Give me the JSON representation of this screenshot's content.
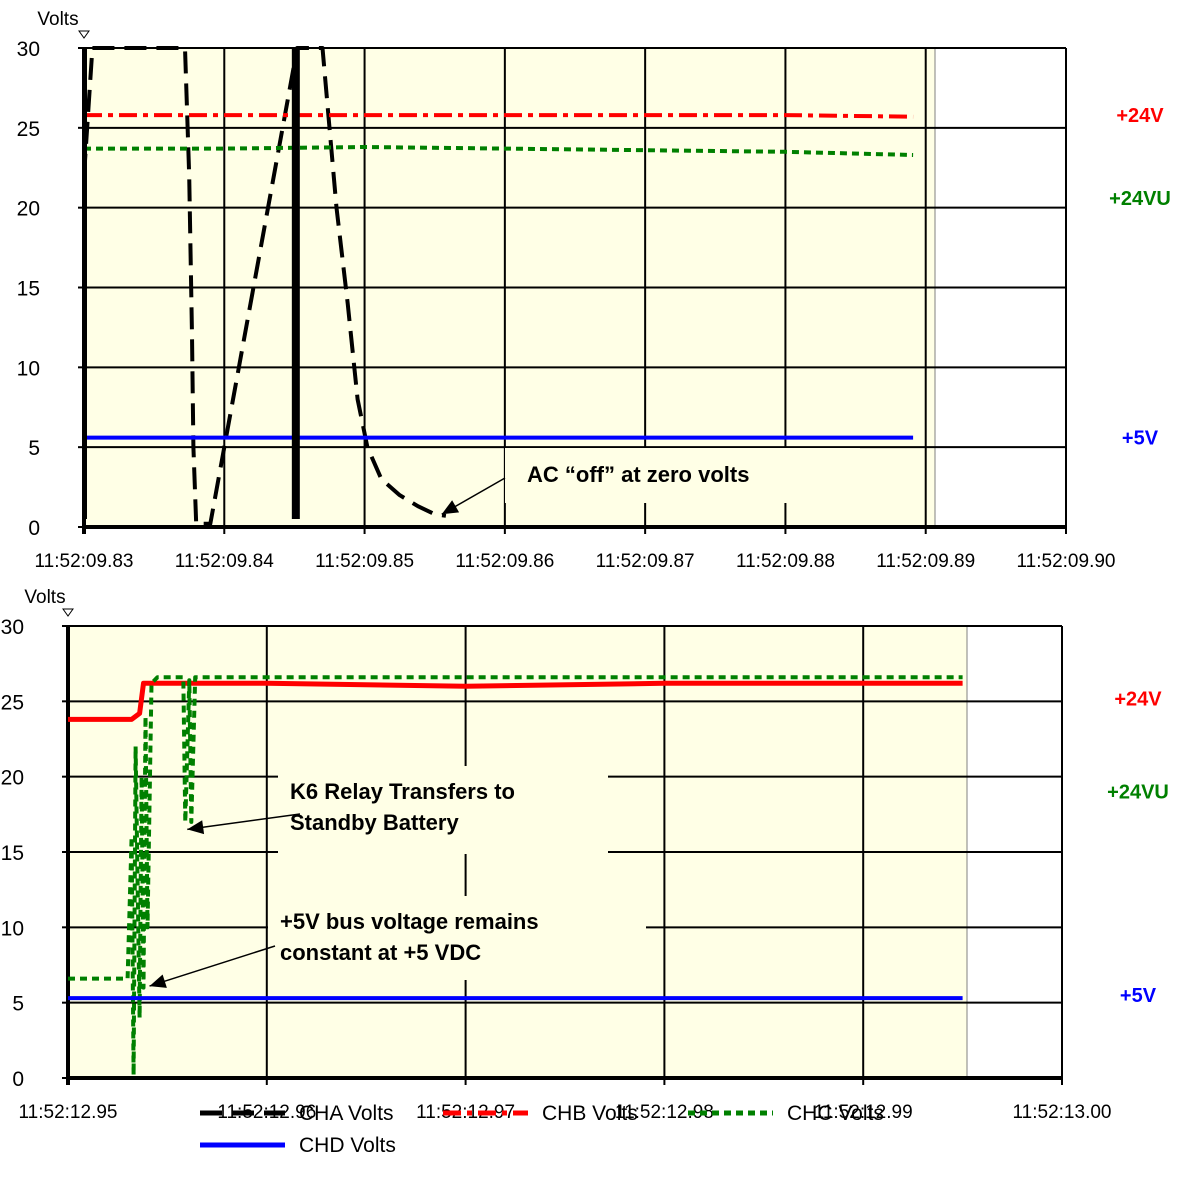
{
  "chart_data": [
    {
      "type": "line",
      "ylabel": "Volts",
      "ylim": [
        0,
        30
      ],
      "yticks": [
        "0",
        "5",
        "10",
        "15",
        "20",
        "25",
        "30"
      ],
      "xticks": [
        "11:52:09.83",
        "11:52:09.84",
        "11:52:09.85",
        "11:52:09.86",
        "11:52:09.87",
        "11:52:09.88",
        "11:52:09.89",
        "11:52:09.90"
      ],
      "xlim": [
        9.83,
        9.9
      ],
      "grid": true,
      "side_labels": [
        {
          "text": "+24V",
          "color": "#ff0000",
          "value": 25.8
        },
        {
          "text": "+24VU",
          "color": "#008000",
          "value": 20.6
        },
        {
          "text": "+5V",
          "color": "#0000ff",
          "value": 5.6
        }
      ],
      "annotations": [
        {
          "text": "AC “off” at zero volts",
          "arrow_to": [
            9.8555,
            0.8
          ]
        }
      ],
      "series": [
        {
          "name": "CHA Volts",
          "color": "#000000",
          "style": "dash",
          "points": [
            [
              9.83,
              22
            ],
            [
              9.8303,
              26
            ],
            [
              9.8306,
              30
            ],
            [
              9.8372,
              30
            ],
            [
              9.8375,
              22
            ],
            [
              9.8377,
              12
            ],
            [
              9.8378,
              5
            ],
            [
              9.838,
              0.2
            ],
            [
              9.839,
              0.2
            ],
            [
              9.8452,
              30
            ],
            [
              9.847,
              30
            ],
            [
              9.848,
              20
            ],
            [
              9.8488,
              14
            ],
            [
              9.8495,
              8
            ],
            [
              9.8502,
              5
            ],
            [
              9.8512,
              3
            ],
            [
              9.8525,
              2
            ],
            [
              9.8538,
              1.3
            ],
            [
              9.855,
              0.8
            ],
            [
              9.8558,
              0.7
            ]
          ]
        },
        {
          "name": "CHB Volts",
          "color": "#ff0000",
          "style": "dashdot",
          "points": [
            [
              9.83,
              25.8
            ],
            [
              9.84,
              25.8
            ],
            [
              9.85,
              25.8
            ],
            [
              9.86,
              25.8
            ],
            [
              9.87,
              25.8
            ],
            [
              9.88,
              25.8
            ],
            [
              9.8891,
              25.7
            ]
          ]
        },
        {
          "name": "CHC Volts",
          "color": "#008000",
          "style": "dot",
          "points": [
            [
              9.83,
              23.7
            ],
            [
              9.84,
              23.7
            ],
            [
              9.85,
              23.8
            ],
            [
              9.86,
              23.7
            ],
            [
              9.87,
              23.6
            ],
            [
              9.88,
              23.5
            ],
            [
              9.8891,
              23.3
            ]
          ]
        },
        {
          "name": "CHD Volts",
          "color": "#0000ff",
          "style": "solid",
          "points": [
            [
              9.83,
              5.6
            ],
            [
              9.84,
              5.6
            ],
            [
              9.85,
              5.6
            ],
            [
              9.86,
              5.6
            ],
            [
              9.87,
              5.6
            ],
            [
              9.88,
              5.6
            ],
            [
              9.8891,
              5.6
            ]
          ]
        }
      ]
    },
    {
      "type": "line",
      "ylabel": "Volts",
      "ylim": [
        0,
        30
      ],
      "yticks": [
        "0",
        "5",
        "10",
        "15",
        "20",
        "25",
        "30"
      ],
      "xticks": [
        "11:52:12.95",
        "11:52:12.96",
        "11:52:12.97",
        "11:52:12.98",
        "11:52:12.99",
        "11:52:13.00"
      ],
      "xlim": [
        12.95,
        13.0
      ],
      "grid": true,
      "side_labels": [
        {
          "text": "+24V",
          "color": "#ff0000",
          "value": 25.2
        },
        {
          "text": "+24VU",
          "color": "#008000",
          "value": 19.0
        },
        {
          "text": "+5V",
          "color": "#0000ff",
          "value": 5.5
        }
      ],
      "annotations": [
        {
          "text": "K6 Relay Transfers to",
          "text2": "Standby Battery",
          "arrow_to": [
            12.956,
            16.5
          ]
        },
        {
          "text": "+5V bus voltage remains",
          "text2": "constant at +5 VDC",
          "arrow_to": [
            12.9541,
            6.1
          ]
        }
      ],
      "series": [
        {
          "name": "CHB Volts",
          "color": "#ff0000",
          "style": "solid-thick",
          "points": [
            [
              12.95,
              23.8
            ],
            [
              12.9532,
              23.8
            ],
            [
              12.9536,
              24.2
            ],
            [
              12.9538,
              26.2
            ],
            [
              12.9545,
              26.2
            ],
            [
              12.96,
              26.2
            ],
            [
              12.97,
              26.0
            ],
            [
              12.98,
              26.2
            ],
            [
              12.99,
              26.2
            ],
            [
              12.995,
              26.2
            ]
          ]
        },
        {
          "name": "CHC Volts",
          "color": "#008000",
          "style": "dot",
          "points": [
            [
              12.95,
              6.6
            ],
            [
              12.953,
              6.6
            ],
            [
              12.9532,
              16
            ],
            [
              12.9533,
              0.2
            ],
            [
              12.9534,
              22
            ],
            [
              12.9536,
              4
            ],
            [
              12.9537,
              20
            ],
            [
              12.9538,
              6
            ],
            [
              12.9539,
              24
            ],
            [
              12.954,
              10
            ],
            [
              12.9542,
              26.2
            ],
            [
              12.9545,
              26.6
            ],
            [
              12.9558,
              26.6
            ],
            [
              12.9559,
              17
            ],
            [
              12.9561,
              26.4
            ],
            [
              12.9562,
              17
            ],
            [
              12.9564,
              26.6
            ],
            [
              12.96,
              26.6
            ],
            [
              12.97,
              26.6
            ],
            [
              12.98,
              26.6
            ],
            [
              12.99,
              26.6
            ],
            [
              12.995,
              26.6
            ]
          ]
        },
        {
          "name": "CHD Volts",
          "color": "#0000ff",
          "style": "solid",
          "points": [
            [
              12.95,
              5.3
            ],
            [
              12.96,
              5.3
            ],
            [
              12.97,
              5.3
            ],
            [
              12.98,
              5.3
            ],
            [
              12.99,
              5.3
            ],
            [
              12.995,
              5.3
            ]
          ]
        }
      ]
    }
  ],
  "legend": [
    {
      "name": "CHA Volts",
      "color": "#000000",
      "style": "dash"
    },
    {
      "name": "CHB Volts",
      "color": "#ff0000",
      "style": "dashdot"
    },
    {
      "name": "CHC Volts",
      "color": "#008000",
      "style": "dot"
    },
    {
      "name": "CHD Volts",
      "color": "#0000ff",
      "style": "solid"
    }
  ]
}
